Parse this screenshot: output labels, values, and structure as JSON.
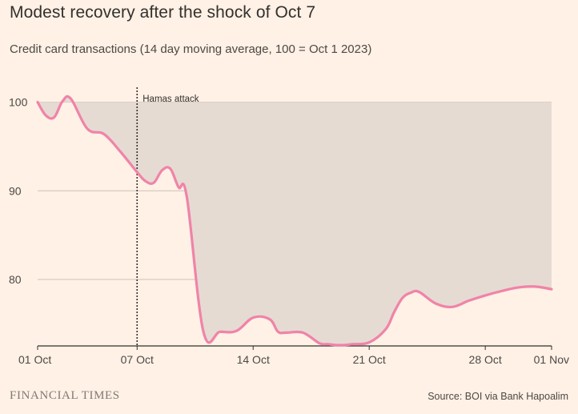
{
  "header": {
    "title": "Modest recovery after the shock of Oct 7",
    "subtitle": "Credit card transactions (14 day moving average, 100 = Oct 1 2023)"
  },
  "footer": {
    "brand": "FINANCIAL TIMES",
    "source": "Source: BOI via Bank Hapoalim"
  },
  "colors": {
    "background": "#fff1e5",
    "line": "#f083a8",
    "shade": "#e5dbd3",
    "grid": "#ccc1b7",
    "annotation": "#33302e"
  },
  "chart_data": {
    "type": "area",
    "title": "Modest recovery after the shock of Oct 7",
    "xlabel": "",
    "ylabel": "",
    "x_unit": "day of period (0 = 01 Oct)",
    "xlim": [
      0,
      31
    ],
    "ylim": [
      72.5,
      101.5
    ],
    "y_ticks": [
      100,
      90,
      80
    ],
    "y_tick_labels": [
      "100",
      "90",
      "80"
    ],
    "x_ticks": [
      0,
      6,
      13,
      20,
      27,
      31
    ],
    "x_tick_labels": [
      "01 Oct",
      "07 Oct",
      "14 Oct",
      "21 Oct",
      "28 Oct",
      "01 Nov"
    ],
    "baseline": 100,
    "grid": true,
    "annotation": {
      "x": 6,
      "label": "Hamas attack"
    },
    "series": [
      {
        "name": "Credit card transactions",
        "x": [
          0,
          0.5,
          1,
          1.5,
          2,
          3,
          4,
          5,
          6,
          6.5,
          7,
          7.5,
          8,
          8.5,
          9,
          10,
          11,
          12,
          13,
          14,
          14.5,
          15,
          16,
          17,
          17.5,
          18,
          18.5,
          19,
          20,
          21,
          21.5,
          22,
          22.5,
          23,
          24,
          25,
          26,
          27,
          28,
          29,
          30,
          31
        ],
        "values": [
          100,
          98.5,
          98.3,
          100.1,
          100.4,
          97,
          96.4,
          94.4,
          92.1,
          91.1,
          90.9,
          92.3,
          92.5,
          90.4,
          89.3,
          74.1,
          74.1,
          74.2,
          75.7,
          75.5,
          74.1,
          74.0,
          74.0,
          72.8,
          72.7,
          72.6,
          72.6,
          72.7,
          72.9,
          74.4,
          76.3,
          77.9,
          78.5,
          78.6,
          77.3,
          76.9,
          77.6,
          78.2,
          78.7,
          79.1,
          79.2,
          78.9
        ]
      }
    ]
  }
}
